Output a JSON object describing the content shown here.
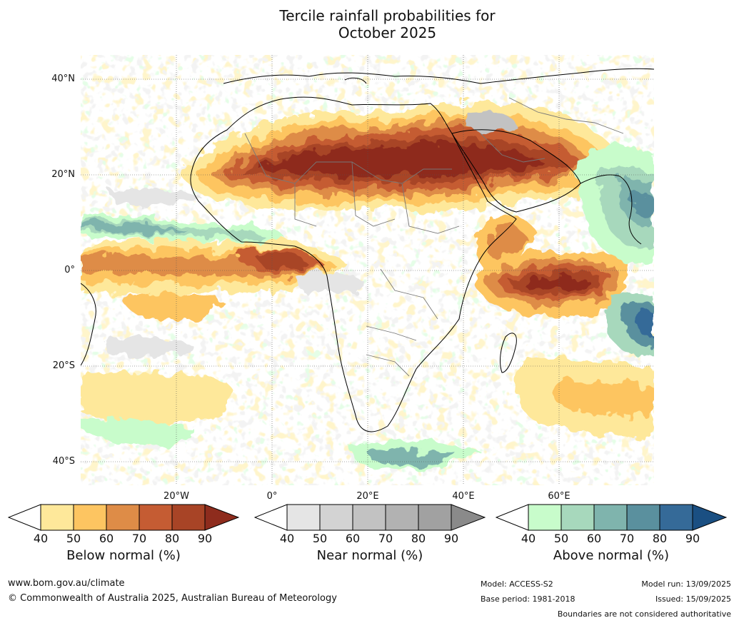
{
  "title": {
    "line1": "Tercile rainfall probabilities for",
    "line2": "October 2025"
  },
  "map": {
    "lat_labels": [
      "40°N",
      "20°N",
      "0°",
      "20°S",
      "40°S"
    ],
    "lon_labels": [
      "20°W",
      "0°",
      "20°E",
      "40°E",
      "60°E"
    ]
  },
  "colorbars": [
    {
      "label": "Below normal (%)",
      "ticks": [
        "40",
        "50",
        "60",
        "70",
        "80",
        "90"
      ],
      "colors": [
        "#ffffff",
        "#fee89a",
        "#fdc561",
        "#de8c47",
        "#c55c33",
        "#a84426",
        "#8e2c1d"
      ]
    },
    {
      "label": "Near normal (%)",
      "ticks": [
        "40",
        "50",
        "60",
        "70",
        "80",
        "90"
      ],
      "colors": [
        "#ffffff",
        "#e5e5e5",
        "#d3d3d3",
        "#c2c2c2",
        "#b2b2b2",
        "#a1a1a1",
        "#8a8a8a"
      ]
    },
    {
      "label": "Above normal (%)",
      "ticks": [
        "40",
        "50",
        "60",
        "70",
        "80",
        "90"
      ],
      "colors": [
        "#ffffff",
        "#c8fccb",
        "#a7d8bc",
        "#7fb4ad",
        "#5a909e",
        "#356a98",
        "#1a4f82"
      ]
    }
  ],
  "footer": {
    "website": "www.bom.gov.au/climate",
    "copyright": "© Commonwealth of Australia 2025, Australian Bureau of Meteorology",
    "model": "Model: ACCESS-S2",
    "base_period": "Base period: 1981-2018",
    "model_run": "Model run: 13/09/2025",
    "issued": "Issued: 15/09/2025",
    "disclaimer": "Boundaries are not considered authoritative"
  }
}
